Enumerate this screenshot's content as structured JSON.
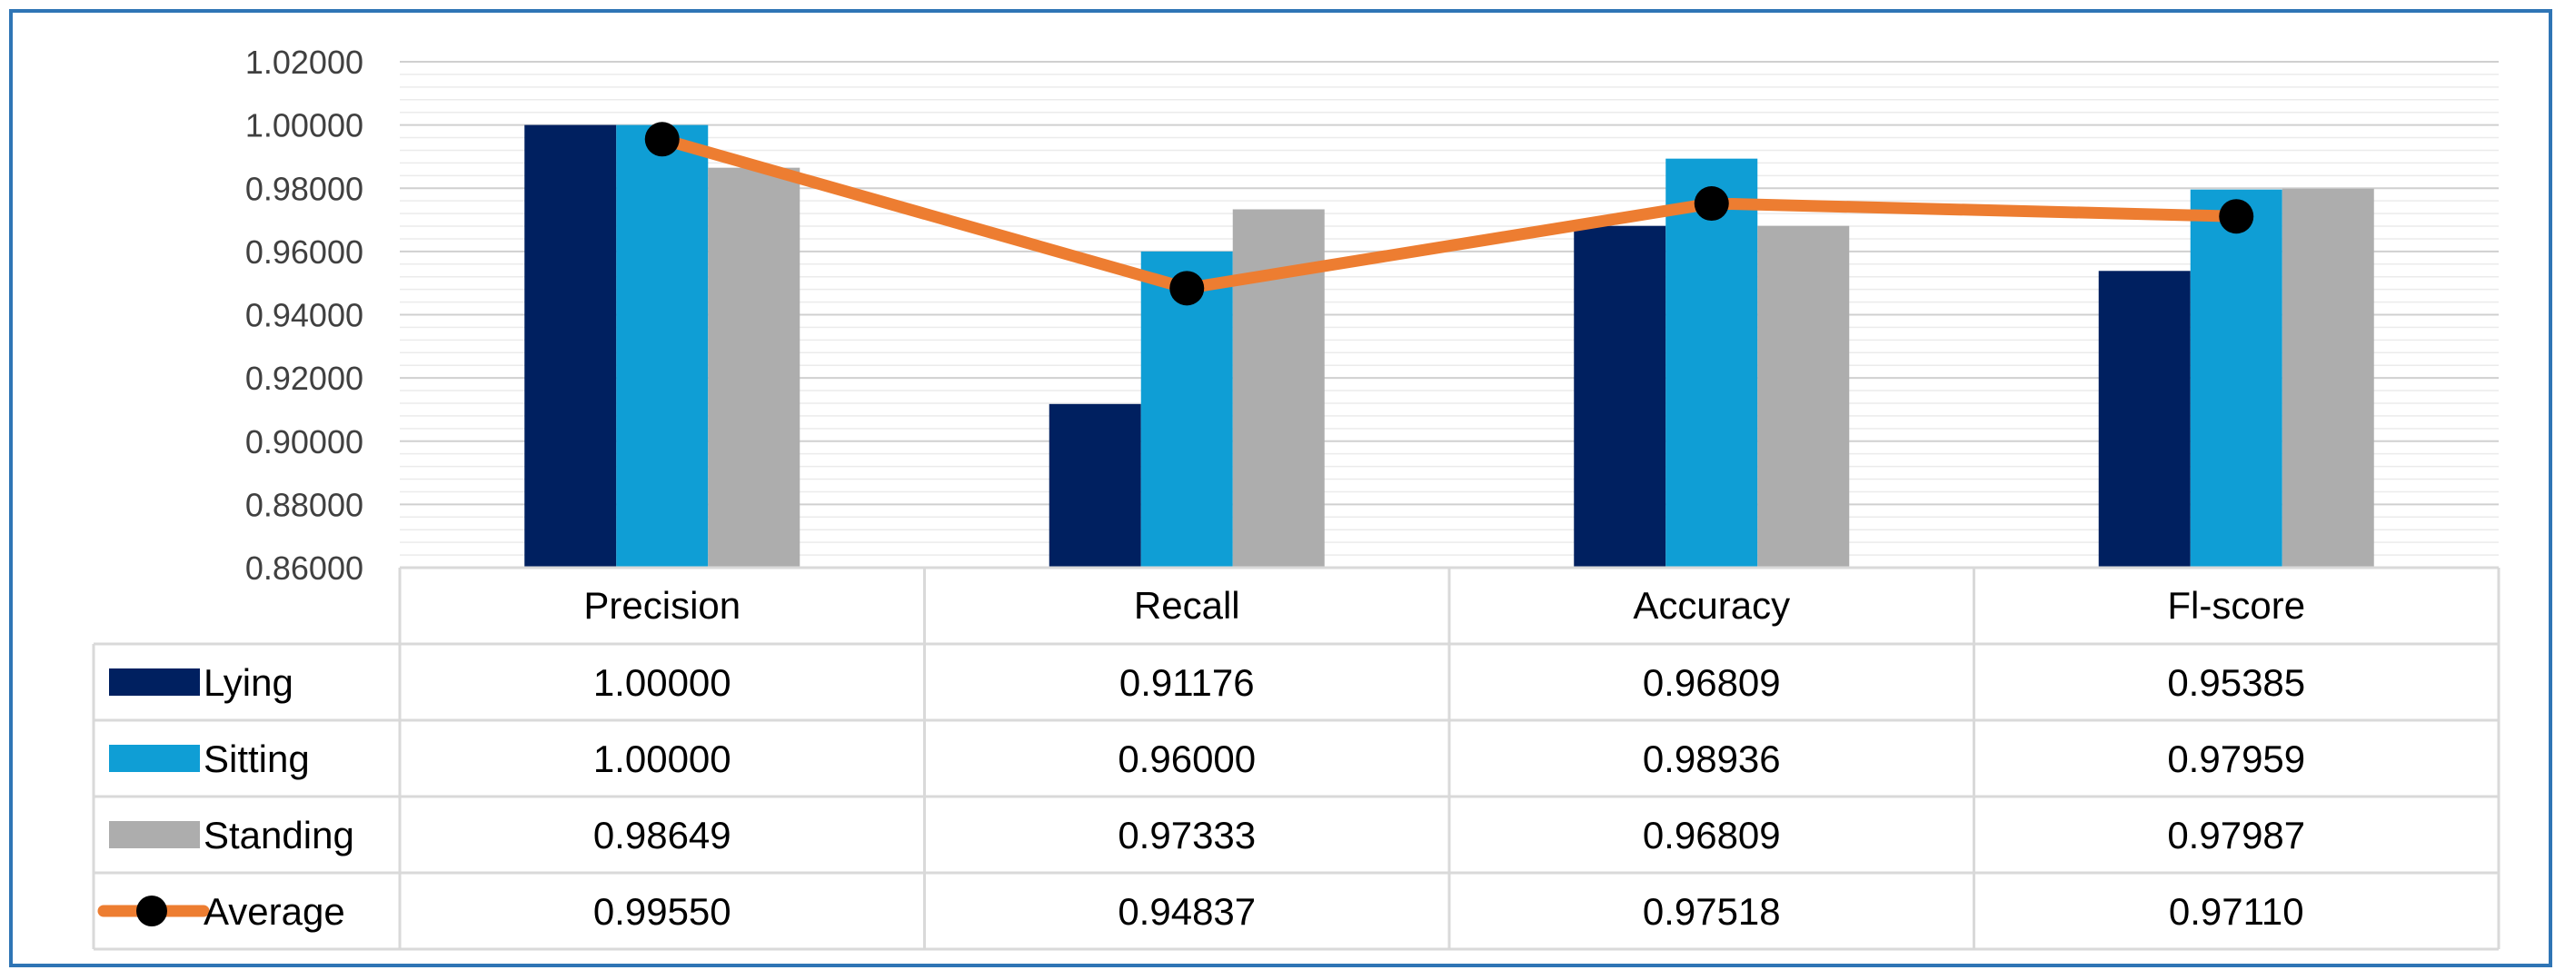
{
  "chart_data": {
    "type": "bar",
    "categories": [
      "Precision",
      "Recall",
      "Accuracy",
      "Fl-score"
    ],
    "series": [
      {
        "name": "Lying",
        "kind": "bar",
        "color": "#002060",
        "values": [
          1.0,
          0.91176,
          0.96809,
          0.95385
        ],
        "labels": [
          "1.00000",
          "0.91176",
          "0.96809",
          "0.95385"
        ]
      },
      {
        "name": "Sitting",
        "kind": "bar",
        "color": "#0f9ed5",
        "values": [
          1.0,
          0.96,
          0.98936,
          0.97959
        ],
        "labels": [
          "1.00000",
          "0.96000",
          "0.98936",
          "0.97959"
        ]
      },
      {
        "name": "Standing",
        "kind": "bar",
        "color": "#adadad",
        "values": [
          0.98649,
          0.97333,
          0.96809,
          0.97987
        ],
        "labels": [
          "0.98649",
          "0.97333",
          "0.96809",
          "0.97987"
        ]
      },
      {
        "name": "Average",
        "kind": "line",
        "color": "#ed7d31",
        "marker_color": "#000000",
        "values": [
          0.9955,
          0.94837,
          0.97518,
          0.9711
        ],
        "labels": [
          "0.99550",
          "0.94837",
          "0.97518",
          "0.97110"
        ]
      }
    ],
    "ylim": [
      0.86,
      1.02
    ],
    "yticks": [
      "0.86000",
      "0.88000",
      "0.90000",
      "0.92000",
      "0.94000",
      "0.96000",
      "0.98000",
      "1.00000",
      "1.02000"
    ],
    "grid": true,
    "data_table": true,
    "title": "",
    "xlabel": "",
    "ylabel": ""
  }
}
